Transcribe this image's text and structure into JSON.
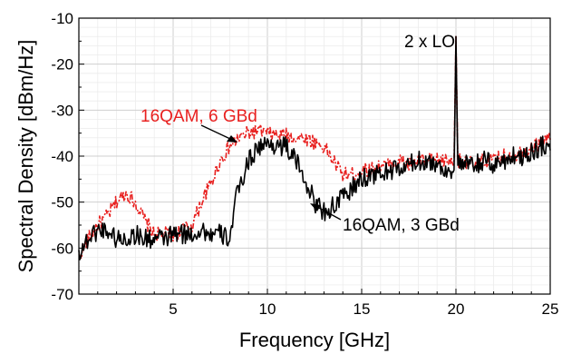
{
  "chart_data": {
    "type": "line",
    "xlabel": "Frequency [GHz]",
    "ylabel": "Spectral Density [dBm/Hz]",
    "xlim": [
      0,
      25
    ],
    "ylim": [
      -70,
      -10
    ],
    "x_ticks": [
      "5",
      "10",
      "15",
      "20",
      "25"
    ],
    "y_ticks": [
      "-10",
      "-20",
      "-30",
      "-40",
      "-50",
      "-60",
      "-70"
    ],
    "grid": true,
    "annotations": [
      {
        "text": "2 x LO",
        "color": "#000000"
      },
      {
        "text": "16QAM, 6 GBd",
        "color": "#e8201f"
      },
      {
        "text": "16QAM, 3 GBd",
        "color": "#000000"
      }
    ],
    "series": [
      {
        "name": "16QAM, 6 GBd",
        "color": "#e8201f",
        "style": "dash-dot",
        "x": [
          0,
          0.5,
          1.0,
          1.5,
          2.0,
          2.5,
          3.0,
          3.5,
          4.0,
          4.5,
          5.0,
          5.5,
          6.0,
          6.5,
          7.0,
          7.5,
          8.0,
          8.5,
          9.0,
          9.5,
          10.0,
          10.5,
          11.0,
          11.5,
          12.0,
          12.5,
          13.0,
          13.5,
          14.0,
          14.5,
          15.0,
          15.5,
          16.0,
          16.5,
          17.0,
          17.5,
          18.0,
          18.5,
          19.0,
          19.5,
          19.9,
          20.0,
          20.1,
          20.5,
          21.0,
          21.5,
          22.0,
          22.5,
          23.0,
          23.5,
          24.0,
          24.5,
          25.0
        ],
        "values": [
          -62,
          -58,
          -55,
          -53,
          -50,
          -48,
          -50,
          -54,
          -57,
          -57,
          -57,
          -56,
          -55,
          -50,
          -46,
          -41,
          -38,
          -36,
          -35,
          -34.5,
          -35,
          -35.5,
          -35.5,
          -36,
          -36,
          -37,
          -38,
          -41,
          -44,
          -44,
          -43,
          -43,
          -42,
          -42,
          -41,
          -42,
          -41,
          -41,
          -41,
          -41,
          -41,
          -14,
          -41,
          -41,
          -42,
          -41,
          -41,
          -40,
          -40,
          -39,
          -38,
          -37,
          -36
        ]
      },
      {
        "name": "16QAM, 3 GBd",
        "color": "#000000",
        "style": "solid",
        "x": [
          0,
          0.5,
          1.0,
          1.5,
          2.0,
          2.5,
          3.0,
          3.5,
          4.0,
          4.5,
          5.0,
          5.5,
          6.0,
          6.5,
          7.0,
          7.5,
          8.0,
          8.3,
          8.5,
          9.0,
          9.5,
          10.0,
          10.5,
          11.0,
          11.5,
          12.0,
          12.5,
          13.0,
          13.5,
          14.0,
          14.5,
          15.0,
          15.5,
          16.0,
          16.5,
          17.0,
          17.5,
          18.0,
          18.5,
          19.0,
          19.5,
          19.9,
          20.0,
          20.1,
          20.5,
          21.0,
          21.5,
          22.0,
          22.5,
          23.0,
          23.5,
          24.0,
          24.5,
          25.0
        ],
        "values": [
          -61,
          -58,
          -56,
          -56,
          -58,
          -58,
          -57,
          -58,
          -58,
          -58,
          -57,
          -57,
          -57,
          -56,
          -57,
          -57,
          -58,
          -50,
          -47,
          -41,
          -38,
          -37.5,
          -37.5,
          -38,
          -41,
          -45,
          -50,
          -52,
          -51,
          -49,
          -47,
          -45,
          -44,
          -44,
          -43,
          -43,
          -42,
          -41,
          -41,
          -42,
          -43,
          -43,
          -14,
          -42,
          -42,
          -42,
          -41,
          -42,
          -41,
          -40,
          -40,
          -39,
          -38,
          -37
        ]
      }
    ]
  }
}
